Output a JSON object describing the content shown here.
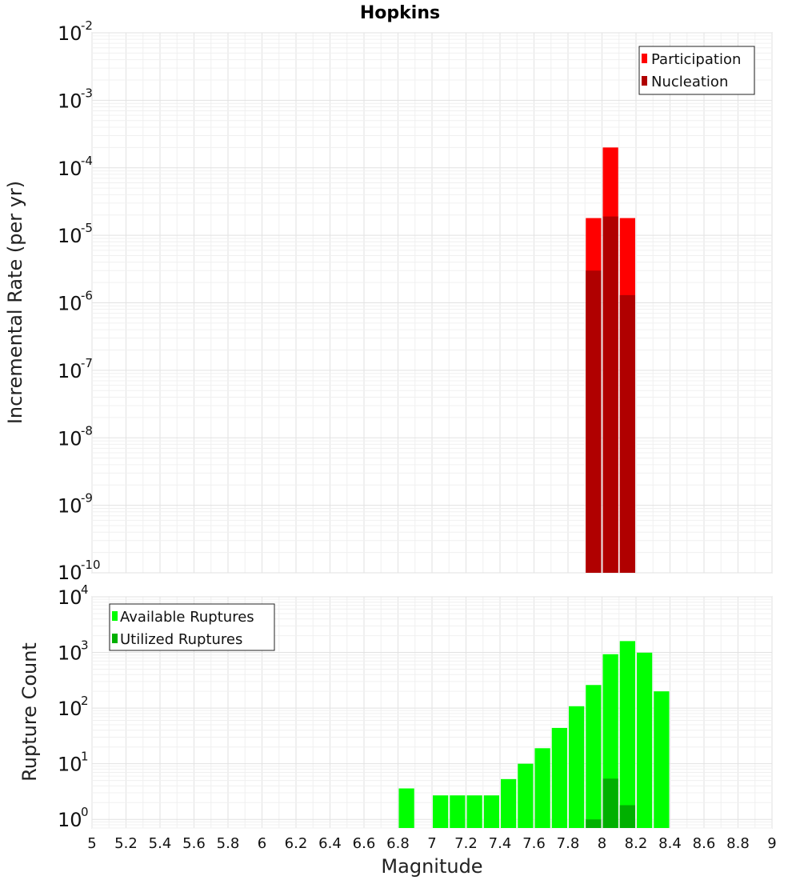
{
  "chart_data": [
    {
      "type": "bar",
      "title": "Hopkins",
      "xlabel": "Magnitude",
      "ylabel": "Incremental Rate (per yr)",
      "yscale": "log",
      "ylim": [
        1e-10,
        0.01
      ],
      "xlim": [
        5,
        9
      ],
      "bin_width": 0.1,
      "legend_position": "top-right",
      "series": [
        {
          "name": "Participation",
          "color": "#ff0000",
          "x": [
            7.95,
            8.05,
            8.15
          ],
          "values": [
            1.8e-05,
            0.0002,
            1.8e-05
          ]
        },
        {
          "name": "Nucleation",
          "color": "#b00000",
          "x": [
            7.95,
            8.05,
            8.15
          ],
          "values": [
            3e-06,
            1.9e-05,
            1.3e-06
          ]
        }
      ]
    },
    {
      "type": "bar",
      "title": "",
      "xlabel": "Magnitude",
      "ylabel": "Rupture Count",
      "yscale": "log",
      "ylim": [
        0.7,
        10000
      ],
      "xlim": [
        5,
        9
      ],
      "bin_width": 0.1,
      "legend_position": "top-left",
      "series": [
        {
          "name": "Available Ruptures",
          "color": "#00ff00",
          "x": [
            6.85,
            7.05,
            7.15,
            7.25,
            7.35,
            7.45,
            7.55,
            7.65,
            7.75,
            7.85,
            7.95,
            8.05,
            8.15,
            8.25,
            8.35
          ],
          "values": [
            3.6,
            2.7,
            2.7,
            2.7,
            2.7,
            5.3,
            10,
            19,
            44,
            108,
            260,
            930,
            1600,
            990,
            200
          ]
        },
        {
          "name": "Utilized Ruptures",
          "color": "#00b000",
          "x": [
            7.95,
            8.05,
            8.15
          ],
          "values": [
            1,
            5.4,
            1.8
          ]
        }
      ]
    }
  ],
  "x_ticks": [
    "5",
    "5.2",
    "5.4",
    "5.6",
    "5.8",
    "6",
    "6.2",
    "6.4",
    "6.6",
    "6.8",
    "7",
    "7.2",
    "7.4",
    "7.6",
    "7.8",
    "8",
    "8.2",
    "8.4",
    "8.6",
    "8.8",
    "9"
  ],
  "top_y_ticks": [
    {
      "base": "10",
      "exp": "-2"
    },
    {
      "base": "10",
      "exp": "-3"
    },
    {
      "base": "10",
      "exp": "-4"
    },
    {
      "base": "10",
      "exp": "-5"
    },
    {
      "base": "10",
      "exp": "-6"
    },
    {
      "base": "10",
      "exp": "-7"
    },
    {
      "base": "10",
      "exp": "-8"
    },
    {
      "base": "10",
      "exp": "-9"
    },
    {
      "base": "10",
      "exp": "-10"
    }
  ],
  "bottom_y_ticks": [
    {
      "base": "10",
      "exp": "4"
    },
    {
      "base": "10",
      "exp": "3"
    },
    {
      "base": "10",
      "exp": "2"
    },
    {
      "base": "10",
      "exp": "1"
    },
    {
      "base": "10",
      "exp": "0"
    }
  ]
}
